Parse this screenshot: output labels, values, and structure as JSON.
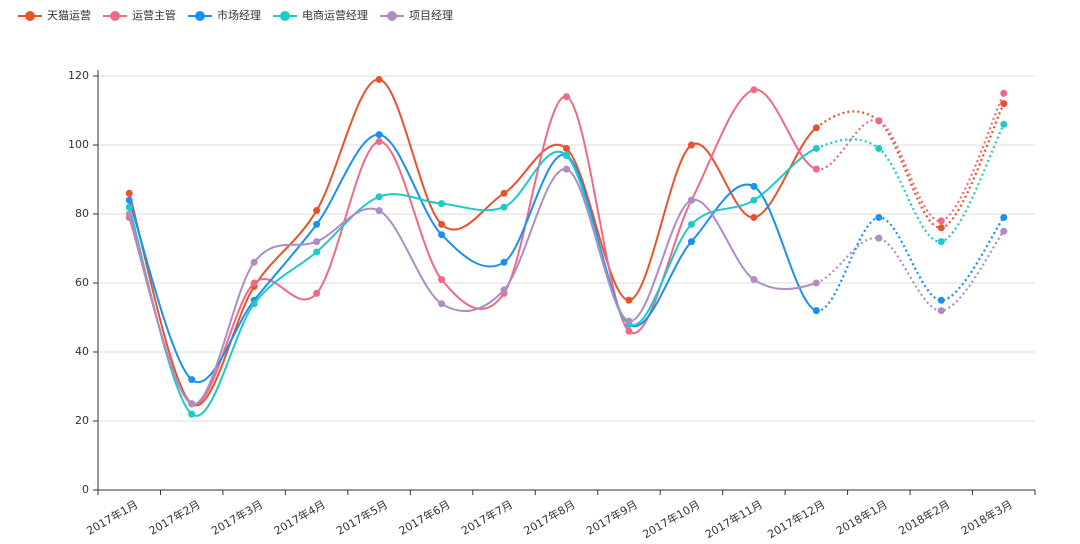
{
  "chart_data": {
    "type": "line",
    "categories": [
      "2017年1月",
      "2017年2月",
      "2017年3月",
      "2017年4月",
      "2017年5月",
      "2017年6月",
      "2017年7月",
      "2017年8月",
      "2017年9月",
      "2017年10月",
      "2017年11月",
      "2017年12月",
      "2018年1月",
      "2018年2月",
      "2018年3月"
    ],
    "series": [
      {
        "name": "天猫运营",
        "color": "#e8532b",
        "values": [
          86,
          25,
          59,
          81,
          119,
          77,
          86,
          99,
          55,
          100,
          79,
          105,
          107,
          76,
          112
        ]
      },
      {
        "name": "运营主管",
        "color": "#f06a85",
        "values": [
          79,
          25,
          60,
          57,
          101,
          61,
          57,
          114,
          46,
          84,
          116,
          93,
          107,
          78,
          115
        ]
      },
      {
        "name": "市场经理",
        "color": "#1a90f0",
        "values": [
          84,
          32,
          55,
          77,
          103,
          74,
          66,
          97,
          48,
          72,
          88,
          52,
          79,
          55,
          79
        ]
      },
      {
        "name": "电商运营经理",
        "color": "#1ec9c9",
        "values": [
          82,
          22,
          54,
          69,
          85,
          83,
          82,
          97,
          48,
          77,
          84,
          99,
          99,
          72,
          106
        ]
      },
      {
        "name": "项目经理",
        "color": "#b08cc4",
        "values": [
          80,
          25,
          66,
          72,
          81,
          54,
          58,
          93,
          49,
          84,
          61,
          60,
          73,
          52,
          75
        ]
      }
    ],
    "ylim": [
      0,
      120
    ],
    "yticks": [
      0,
      20,
      40,
      60,
      80,
      100,
      120
    ],
    "grid": true,
    "smooth": true,
    "dotted_from_index": 11
  }
}
